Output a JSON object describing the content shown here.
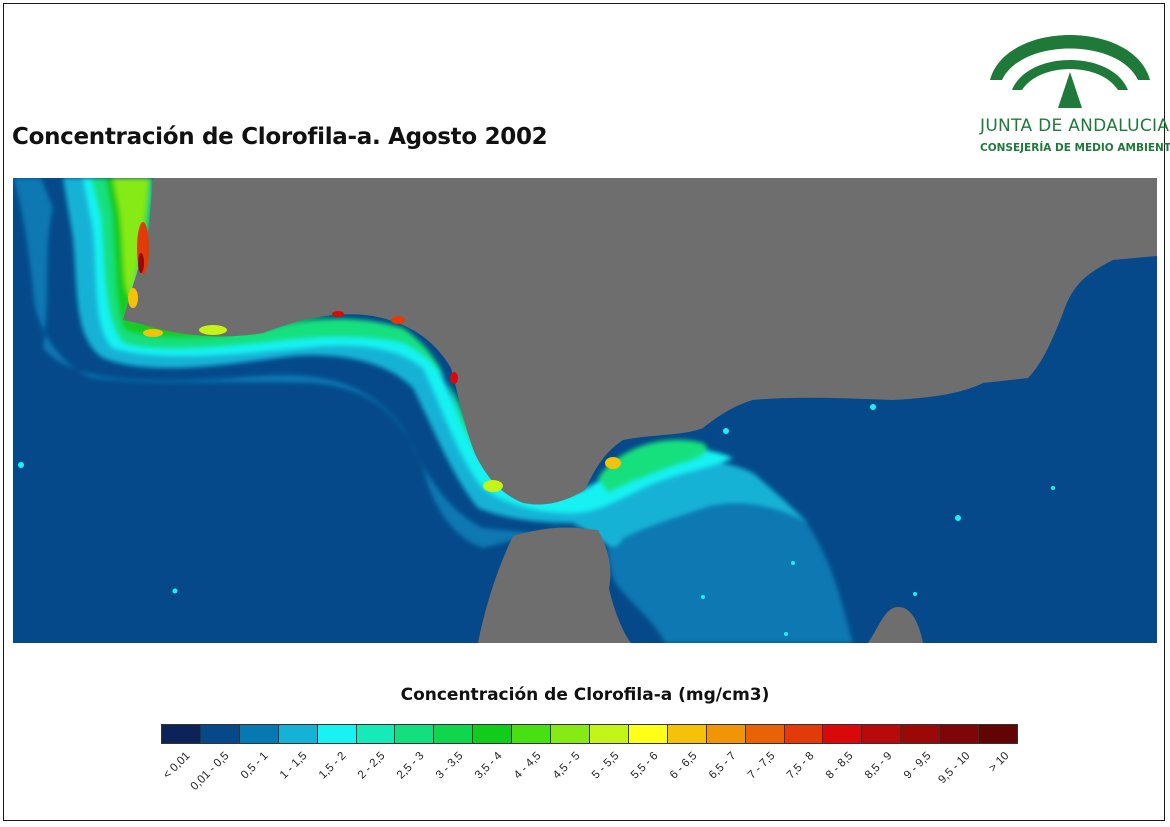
{
  "map": {
    "title": "Concentración de Clorofila-a. Agosto 2002",
    "land_color": "#6e6e6e",
    "background_sea_color": "#05498a"
  },
  "logo": {
    "name": "JUNTA DE ANDALUCIA",
    "department": "CONSEJERÍA DE MEDIO AMBIENTE",
    "color": "#1f7a3a"
  },
  "legend": {
    "title": "Concentración de Clorofila-a (mg/cm3)",
    "classes": [
      {
        "label": "< 0,01",
        "color": "#0b2358"
      },
      {
        "label": "0,01 - 0,5",
        "color": "#05498a"
      },
      {
        "label": "0,5 - 1",
        "color": "#0878b2"
      },
      {
        "label": "1 - 1,5",
        "color": "#14b2d6"
      },
      {
        "label": "1,5 - 2",
        "color": "#18f2f2"
      },
      {
        "label": "2 - 2,5",
        "color": "#16eab8"
      },
      {
        "label": "2,5 - 3",
        "color": "#12e07e"
      },
      {
        "label": "3 - 3,5",
        "color": "#10d64e"
      },
      {
        "label": "3,5 - 4",
        "color": "#12cc1c"
      },
      {
        "label": "4 - 4,5",
        "color": "#48e012"
      },
      {
        "label": "4,5 - 5",
        "color": "#86ea14"
      },
      {
        "label": "5 - 5,5",
        "color": "#c4f418"
      },
      {
        "label": "5,5 - 6",
        "color": "#ffff18"
      },
      {
        "label": "6 - 6,5",
        "color": "#f4c208"
      },
      {
        "label": "6,5 - 7",
        "color": "#f09408"
      },
      {
        "label": "7 - 7,5",
        "color": "#ea6208"
      },
      {
        "label": "7,5 - 8",
        "color": "#e23a08"
      },
      {
        "label": "8 - 8,5",
        "color": "#da0808"
      },
      {
        "label": "8,5 - 9",
        "color": "#b80a0a"
      },
      {
        "label": "9 - 9,5",
        "color": "#9a0808"
      },
      {
        "label": "9,5 - 10",
        "color": "#7e0606"
      },
      {
        "label": "> 10",
        "color": "#620404"
      }
    ]
  }
}
